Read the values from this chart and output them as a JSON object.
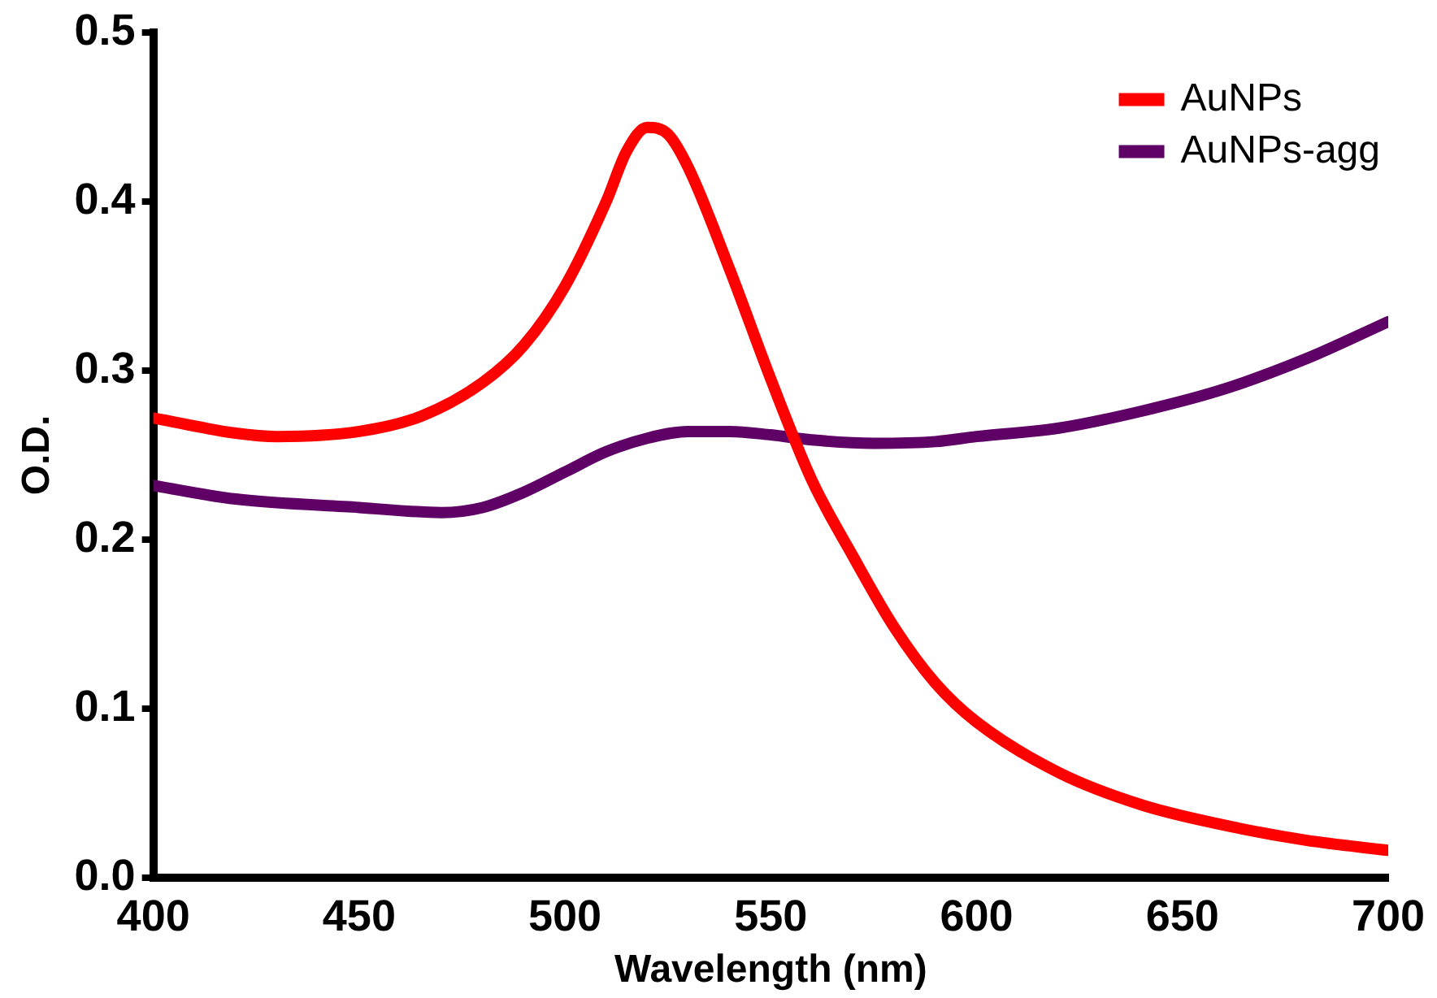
{
  "chart_data": {
    "type": "line",
    "xlabel": "Wavelength (nm)",
    "ylabel": "O.D.",
    "xlim": [
      400,
      700
    ],
    "xticks": [
      400,
      450,
      500,
      550,
      600,
      650,
      700
    ],
    "ylim": [
      0,
      0.5
    ],
    "yticks": [
      {
        "value": 0,
        "label": "0.0"
      },
      0.1,
      0.2,
      0.3,
      0.4,
      0.5
    ],
    "grid": false,
    "legend": "top right",
    "marker": "none",
    "line_style": "solid",
    "series": [
      {
        "name": "AuNPs",
        "color": "#ff0000",
        "x": [
          400,
          420,
          430,
          450,
          465,
          480,
          490,
          500,
          510,
          515,
          520,
          525,
          530,
          540,
          550,
          560,
          570,
          580,
          590,
          600,
          620,
          640,
          660,
          680,
          700
        ],
        "values": [
          0.272,
          0.263,
          0.261,
          0.264,
          0.273,
          0.293,
          0.315,
          0.35,
          0.4,
          0.43,
          0.444,
          0.44,
          0.42,
          0.36,
          0.295,
          0.235,
          0.19,
          0.148,
          0.115,
          0.092,
          0.062,
          0.043,
          0.031,
          0.022,
          0.016
        ]
      },
      {
        "name": "AuNPs-agg",
        "color": "#5e0065",
        "x": [
          400,
          420,
          450,
          470,
          480,
          490,
          500,
          510,
          520,
          530,
          540,
          550,
          560,
          575,
          590,
          600,
          620,
          640,
          660,
          680,
          700
        ],
        "values": [
          0.232,
          0.224,
          0.219,
          0.216,
          0.219,
          0.228,
          0.24,
          0.252,
          0.26,
          0.264,
          0.264,
          0.262,
          0.259,
          0.257,
          0.258,
          0.261,
          0.266,
          0.276,
          0.289,
          0.307,
          0.329
        ]
      }
    ]
  }
}
